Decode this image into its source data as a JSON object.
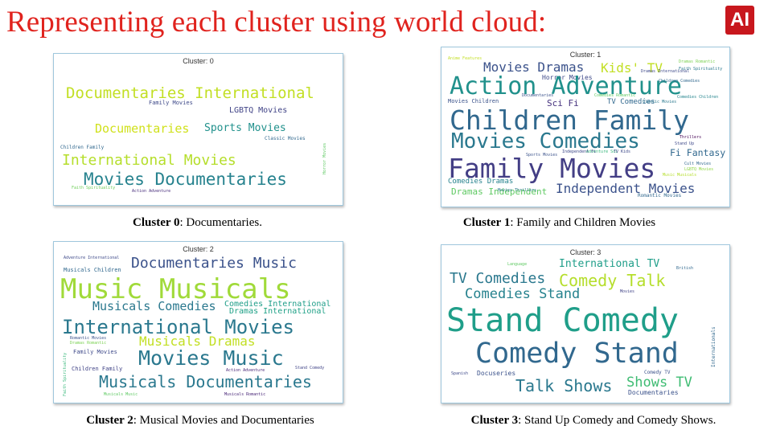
{
  "title": "Representing each cluster using world cloud:",
  "logo_text": "AI",
  "colors": {
    "title": "#e0231e",
    "logo_bg": "#c8171d"
  },
  "panels": [
    {
      "label": "Cluster: 0",
      "words": [
        "Documentaries International",
        "Family Movies",
        "LGBTQ Movies",
        "Documentaries",
        "Sports Movies",
        "Classic Movies",
        "Children Family",
        "International Movies",
        "Movies Documentaries",
        "Faith Spirituality",
        "Action Adventure",
        "Horror Movies"
      ]
    },
    {
      "label": "Cluster: 1",
      "words": [
        "Movies Dramas",
        "Kids' TV",
        "Horror Movies",
        "Action Adventure",
        "Sci Fi",
        "Movies Children",
        "TV Comedies",
        "Children Family",
        "Movies Comedies",
        "Family Movies",
        "Fi Fantasy",
        "Comedies Dramas",
        "Dramas Independent",
        "Independent Movies",
        "Romantic Movies",
        "Comedies Romantic",
        "Dramas Romantic",
        "Faith Spirituality",
        "Comedies Children",
        "Sports Movies",
        "Cult Movies",
        "LGBTQ Movies",
        "Thrillers",
        "Music Musicals",
        "Classic Movies",
        "Adventure Sci",
        "TV Kids",
        "Anime Features",
        "Independent Fi",
        "Movies Thrillers",
        "Dramas International",
        "Children Comedies",
        "Documentaries",
        "Stand Up"
      ]
    },
    {
      "label": "Cluster: 2",
      "words": [
        "Adventure International",
        "Documentaries Music",
        "Musicals Children",
        "Music Musicals",
        "Musicals Comedies",
        "Comedies International",
        "Dramas International",
        "International Movies",
        "Musicals Dramas",
        "Romantic Movies",
        "Family Movies",
        "Movies Music",
        "Children Family",
        "Action Adventure",
        "Musicals Documentaries",
        "Musicals Music",
        "Musicals Romantic",
        "Dramas Romantic",
        "Stand Comedy",
        "Faith Spirituality"
      ]
    },
    {
      "label": "Cluster: 3",
      "words": [
        "Language",
        "International TV",
        "British",
        "TV Comedies",
        "Comedy Talk",
        "Comedies Stand",
        "Movies",
        "Stand Comedy",
        "Comedy Stand",
        "Spanish",
        "Docuseries",
        "Comedy TV",
        "Talk Shows",
        "Shows TV",
        "Documentaries",
        "Internationals"
      ]
    }
  ],
  "captions": [
    {
      "bold": "Cluster 0",
      "text": ": Documentaries."
    },
    {
      "bold": "Cluster 1",
      "text": ": Family and Children Movies"
    },
    {
      "bold": "Cluster 2",
      "text": ": Musical Movies and Documentaries"
    },
    {
      "bold": "Cluster 3",
      "text": ": Stand Up Comedy and Comedy Shows."
    }
  ]
}
